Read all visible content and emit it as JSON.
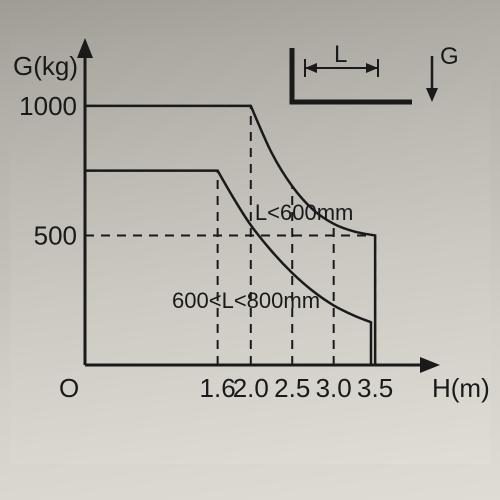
{
  "whole": {
    "type": "line",
    "background_gradient": [
      "#a7a49d",
      "#bdbab3",
      "#cbc9c1",
      "#d6d4cc",
      "#dfddd4"
    ],
    "stroke_color": "#1a1a1a",
    "text_color": "#1a1a1a",
    "axis_line_width": 3,
    "curve_line_width": 2,
    "dash_pattern": "9 7",
    "font_family": "Arial Narrow",
    "y_axis": {
      "label": "G(kg)",
      "label_fontsize": 26,
      "ticks": [
        500,
        1000
      ],
      "tick_fontsize": 26,
      "range": [
        0,
        1100
      ]
    },
    "x_axis": {
      "label": "H(m)",
      "label_fontsize": 26,
      "origin_label": "O",
      "ticks": [
        1.6,
        2.0,
        2.5,
        3.0,
        3.5
      ],
      "tick_labels": [
        "1.6",
        "2.0",
        "2.5",
        "3.0",
        "3.5"
      ],
      "tick_fontsize": 26,
      "range": [
        0,
        3.8
      ]
    },
    "gridlines": {
      "horizontal_at_y": [
        500,
        750,
        1000
      ],
      "vertical_at_x": [
        1.6,
        2.0,
        2.5,
        3.0,
        3.5
      ]
    },
    "series": [
      {
        "name": "L<600mm",
        "label": "L<600mm",
        "label_fontsize": 22,
        "label_pos_xy": [
          2.05,
          560
        ],
        "flat_y": 1000,
        "flat_x_end": 2.0,
        "curve_points": [
          {
            "x": 2.0,
            "y": 1000
          },
          {
            "x": 2.25,
            "y": 820
          },
          {
            "x": 2.5,
            "y": 690
          },
          {
            "x": 2.75,
            "y": 600
          },
          {
            "x": 3.0,
            "y": 545
          },
          {
            "x": 3.25,
            "y": 515
          },
          {
            "x": 3.5,
            "y": 500
          }
        ],
        "drop_at_x": 3.5
      },
      {
        "name": "600<L<800mm",
        "label": "600<L<800mm",
        "label_fontsize": 22,
        "label_pos_xy": [
          1.05,
          220
        ],
        "flat_y": 750,
        "flat_x_end": 1.6,
        "curve_points": [
          {
            "x": 1.6,
            "y": 750
          },
          {
            "x": 1.8,
            "y": 640
          },
          {
            "x": 2.0,
            "y": 540
          },
          {
            "x": 2.25,
            "y": 440
          },
          {
            "x": 2.5,
            "y": 355
          },
          {
            "x": 2.75,
            "y": 285
          },
          {
            "x": 3.0,
            "y": 230
          },
          {
            "x": 3.25,
            "y": 190
          },
          {
            "x": 3.45,
            "y": 165
          }
        ],
        "drop_at_x": 3.45
      }
    ],
    "inset_diagram": {
      "L_label": "L",
      "G_label": "G",
      "fontsize": 24,
      "bracket_stroke": 3
    }
  }
}
